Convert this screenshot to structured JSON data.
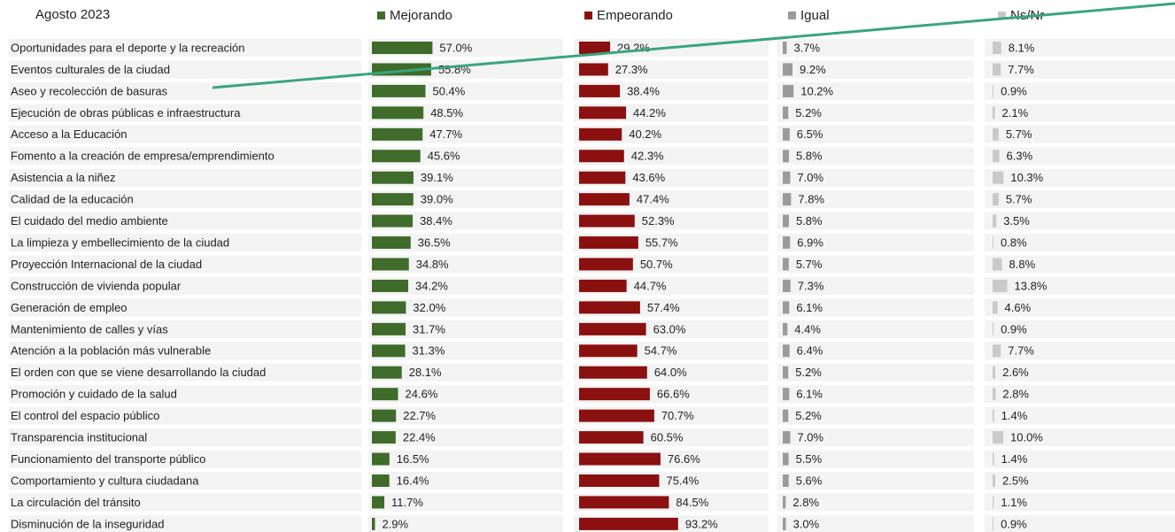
{
  "chart_data": {
    "type": "bar",
    "title": "Agosto 2023",
    "categories": [
      "Oportunidades para el deporte y la recreación",
      "Eventos culturales de la ciudad",
      "Aseo y recolección de basuras",
      "Ejecución de obras públicas e infraestructura",
      "Acceso a la Educación",
      "Fomento a la creación de empresa/emprendimiento",
      "Asistencia a la niñez",
      "Calidad de la educación",
      "El cuidado del medio ambiente",
      "La limpieza y embellecimiento de la ciudad",
      "Proyección Internacional de la ciudad",
      "Construcción de vivienda popular",
      "Generación de empleo",
      "Mantenimiento de calles y vías",
      "Atención a la población más vulnerable",
      "El orden con que se viene desarrollando la ciudad",
      "Promoción y cuidado de la salud",
      "El control del espacio público",
      "Transparencia institucional",
      "Funcionamiento del transporte público",
      "Comportamiento y cultura ciudadana",
      "La circulación del tránsito",
      "Disminución de la inseguridad"
    ],
    "series": [
      {
        "name": "Mejorando",
        "color": "#3f6b2b",
        "values": [
          57.0,
          55.8,
          50.4,
          48.5,
          47.7,
          45.6,
          39.1,
          39.0,
          38.4,
          36.5,
          34.8,
          34.2,
          32.0,
          31.7,
          31.3,
          28.1,
          24.6,
          22.7,
          22.4,
          16.5,
          16.4,
          11.7,
          2.9
        ],
        "value_labels": [
          "57.0%",
          "55.8%",
          "50.4%",
          "48.5%",
          "47.7%",
          "45.6%",
          "39.1%",
          "39.0%",
          "38.4%",
          "36.5%",
          "34.8%",
          "34.2%",
          "32.0%",
          "31.7%",
          "31.3%",
          "28.1%",
          "24.6%",
          "22.7%",
          "22.4%",
          "16.5%",
          "16.4%",
          "11.7%",
          "2.9%"
        ]
      },
      {
        "name": "Empeorando",
        "color": "#8b1010",
        "values": [
          29.2,
          27.3,
          38.4,
          44.2,
          40.2,
          42.3,
          43.6,
          47.4,
          52.3,
          55.7,
          50.7,
          44.7,
          57.4,
          63.0,
          54.7,
          64.0,
          66.6,
          70.7,
          60.5,
          76.6,
          75.4,
          84.5,
          93.2
        ],
        "value_labels": [
          "29.2%",
          "27.3%",
          "38.4%",
          "44.2%",
          "40.2%",
          "42.3%",
          "43.6%",
          "47.4%",
          "52.3%",
          "55.7%",
          "50.7%",
          "44.7%",
          "57.4%",
          "63.0%",
          "54.7%",
          "64.0%",
          "66.6%",
          "70.7%",
          "60.5%",
          "76.6%",
          "75.4%",
          "84.5%",
          "93.2%"
        ]
      },
      {
        "name": "Igual",
        "color": "#9a9a9a",
        "values": [
          3.7,
          9.2,
          10.2,
          5.2,
          6.5,
          5.8,
          7.0,
          7.8,
          5.8,
          6.9,
          5.7,
          7.3,
          6.1,
          4.4,
          6.4,
          5.2,
          6.1,
          5.2,
          7.0,
          5.5,
          5.6,
          2.8,
          3.0
        ],
        "value_labels": [
          "3.7%",
          "9.2%",
          "10.2%",
          "5.2%",
          "6.5%",
          "5.8%",
          "7.0%",
          "7.8%",
          "5.8%",
          "6.9%",
          "5.7%",
          "7.3%",
          "6.1%",
          "4.4%",
          "6.4%",
          "5.2%",
          "6.1%",
          "5.2%",
          "7.0%",
          "5.5%",
          "5.6%",
          "2.8%",
          "3.0%"
        ]
      },
      {
        "name": "Ns/Nr",
        "color": "#c9c9c9",
        "values": [
          8.1,
          7.7,
          0.9,
          2.1,
          5.7,
          6.3,
          10.3,
          5.7,
          3.5,
          0.8,
          8.8,
          13.8,
          4.6,
          0.9,
          7.7,
          2.6,
          2.8,
          1.4,
          10.0,
          1.4,
          2.5,
          1.1,
          0.9
        ],
        "value_labels": [
          "8.1%",
          "7.7%",
          "0.9%",
          "2.1%",
          "5.7%",
          "6.3%",
          "10.3%",
          "5.7%",
          "3.5%",
          "0.8%",
          "8.8%",
          "13.8%",
          "4.6%",
          "0.9%",
          "7.7%",
          "2.6%",
          "2.8%",
          "1.4%",
          "10.0%",
          "1.4%",
          "2.5%",
          "1.1%",
          "0.9%"
        ]
      }
    ]
  }
}
